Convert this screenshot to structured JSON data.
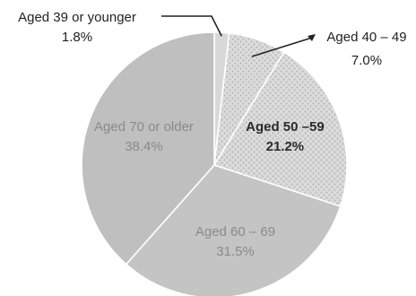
{
  "chart_data": {
    "type": "pie",
    "slices": [
      {
        "label": "Aged 39 or younger",
        "value": 1.8,
        "value_label": "1.8%",
        "color": "#d8d8d8",
        "pattern": "none"
      },
      {
        "label": "Aged 40 – 49",
        "value": 7.0,
        "value_label": "7.0%",
        "color": "#d6d6d6",
        "pattern": "dots"
      },
      {
        "label": "Aged 50 –59",
        "value": 21.2,
        "value_label": "21.2%",
        "color": "#dcdcdc",
        "pattern": "dots"
      },
      {
        "label": "Aged 60 – 69",
        "value": 31.5,
        "value_label": "31.5%",
        "color": "#c4c4c4",
        "pattern": "none"
      },
      {
        "label": "Aged 70 or older",
        "value": 38.4,
        "value_label": "38.4%",
        "color": "#bfbfbf",
        "pattern": "none"
      }
    ],
    "start_angle": "12 o'clock",
    "direction": "clockwise",
    "legend": "none"
  }
}
